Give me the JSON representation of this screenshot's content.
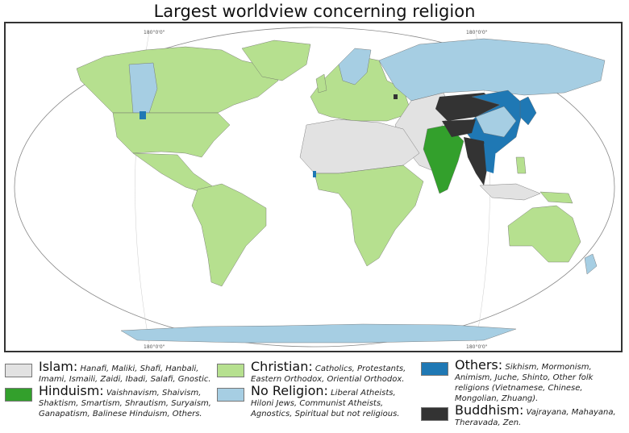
{
  "title": "Largest worldview concerning religion",
  "graticule_labels": {
    "top_left": "180°0'0\"",
    "top_right": "180°0'0\"",
    "bottom_left": "180°0'0\"",
    "bottom_right": "180°0'0\""
  },
  "colors": {
    "islam": "#e2e2e2",
    "christian": "#b6e08f",
    "hinduism": "#33a02c",
    "no_religion": "#a6cee3",
    "others": "#1f78b4",
    "buddhism": "#333333",
    "ocean": "#ffffff"
  },
  "legend": [
    {
      "key": "islam",
      "name": "Islam:",
      "desc": "Hanafi, Maliki, Shafi, Hanbali, Imami, Ismaili, Zaidi, Ibadi, Salafi, Gnostic."
    },
    {
      "key": "hinduism",
      "name": "Hinduism:",
      "desc": "Vaishnavism, Shaivism, Shaktism, Smartism, Shrautism, Suryaism, Ganapatism, Balinese Hinduism, Others."
    },
    {
      "key": "christian",
      "name": "Christian:",
      "desc": "Catholics, Protestants, Eastern Orthodox, Oriential Orthodox."
    },
    {
      "key": "no_religion",
      "name": "No Religion:",
      "desc": "Liberal Atheists, Hiloni Jews, Communist Atheists, Agnostics, Spiritual but not religious."
    },
    {
      "key": "others",
      "name": "Others:",
      "desc": "Sikhism, Mormonism, Animism, Juche, Shinto, Other folk religions (Vietnamese, Chinese, Mongolian, Zhuang)."
    },
    {
      "key": "buddhism",
      "name": "Buddhism:",
      "desc": "Vajrayana, Mahayana, Theravada, Zen."
    }
  ]
}
